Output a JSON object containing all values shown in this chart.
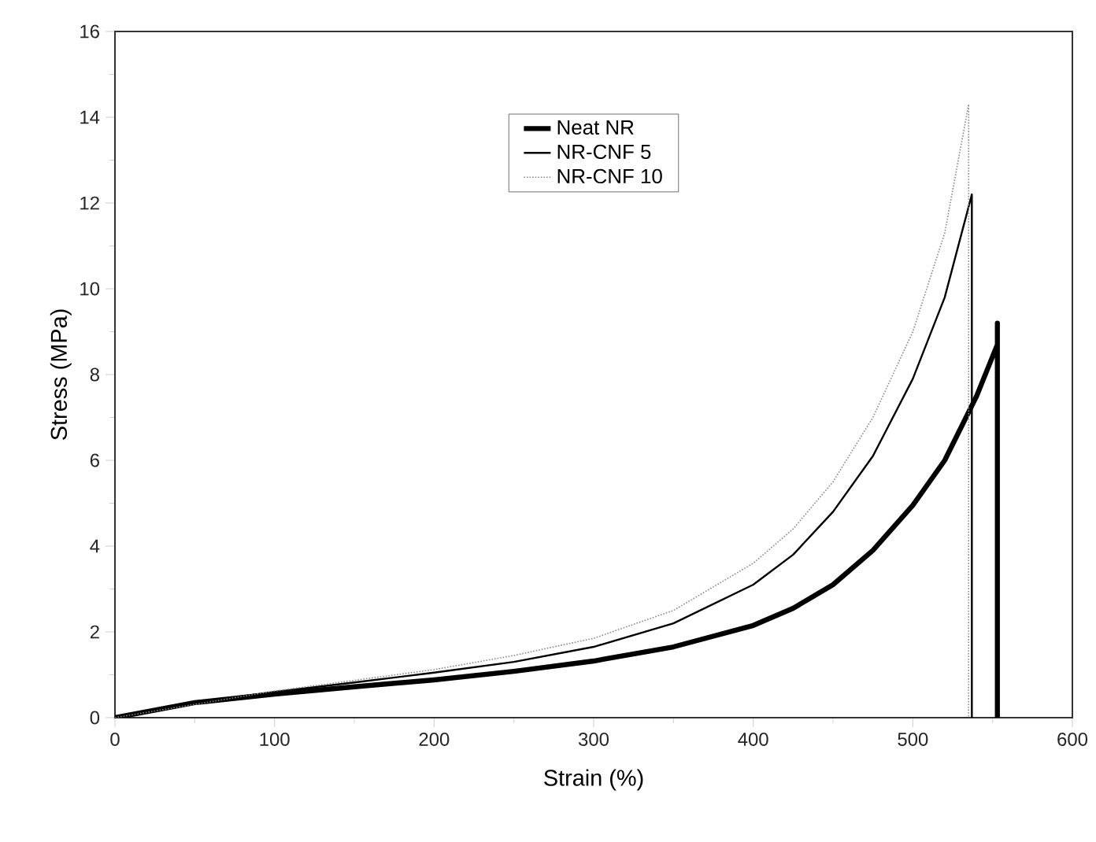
{
  "chart_data": {
    "type": "line",
    "xlabel": "Strain (%)",
    "ylabel": "Stress (MPa)",
    "xlim": [
      0,
      600
    ],
    "xticks": [
      0,
      100,
      200,
      300,
      400,
      500,
      600
    ],
    "ylim": [
      0,
      16
    ],
    "yticks": [
      0,
      2,
      4,
      6,
      8,
      10,
      12,
      14,
      16
    ],
    "grid": false,
    "legend": "top",
    "marker": "none",
    "series": [
      {
        "name": "Neat NR",
        "color": "#000000",
        "line_style": "solid",
        "x": [
          0,
          50,
          100,
          150,
          200,
          250,
          300,
          350,
          400,
          425,
          450,
          475,
          500,
          520,
          540,
          553,
          553,
          553
        ],
        "values": [
          0,
          0.35,
          0.55,
          0.72,
          0.88,
          1.08,
          1.32,
          1.65,
          2.15,
          2.55,
          3.1,
          3.9,
          4.95,
          6.0,
          7.5,
          8.7,
          9.2,
          0
        ]
      },
      {
        "name": "NR-CNF 5",
        "color": "#000000",
        "line_style": "solid",
        "x": [
          0,
          50,
          100,
          150,
          200,
          250,
          300,
          350,
          400,
          425,
          450,
          475,
          500,
          520,
          537,
          537
        ],
        "values": [
          0,
          0.35,
          0.6,
          0.82,
          1.05,
          1.3,
          1.65,
          2.2,
          3.1,
          3.8,
          4.8,
          6.1,
          7.9,
          9.8,
          12.2,
          0
        ]
      },
      {
        "name": "NR-CNF 10",
        "color": "#888888",
        "line_style": "dotted",
        "x": [
          0,
          100,
          200,
          250,
          300,
          350,
          400,
          425,
          450,
          475,
          500,
          520,
          535,
          535
        ],
        "values": [
          0,
          0.62,
          1.12,
          1.45,
          1.85,
          2.5,
          3.6,
          4.4,
          5.5,
          7.0,
          9.0,
          11.3,
          14.3,
          0
        ]
      }
    ]
  }
}
